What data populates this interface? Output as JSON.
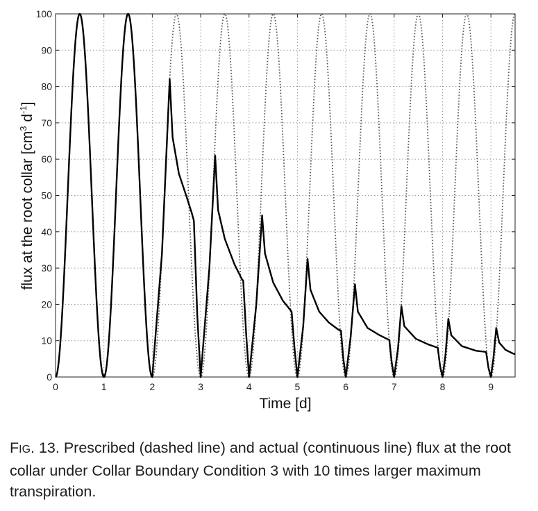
{
  "chart_data": {
    "type": "line",
    "xlabel": "Time [d]",
    "ylabel_main": "flux at the root collar [cm",
    "ylabel_sup1": "3",
    "ylabel_mid": " d",
    "ylabel_sup2": "-1",
    "ylabel_end": "]",
    "xlim": [
      0,
      9.5
    ],
    "ylim": [
      0,
      100
    ],
    "xticks": [
      0,
      1,
      2,
      3,
      4,
      5,
      6,
      7,
      8,
      9
    ],
    "yticks": [
      0,
      10,
      20,
      30,
      40,
      50,
      60,
      70,
      80,
      90,
      100
    ],
    "grid": true,
    "series": [
      {
        "style": "dashed",
        "color": "#555555",
        "formula": "50*(1-cos(2*pi*t))",
        "points": [
          [
            0,
            0
          ],
          [
            0.25,
            50
          ],
          [
            0.5,
            100
          ],
          [
            0.75,
            50
          ],
          [
            1,
            0
          ],
          [
            1.25,
            50
          ],
          [
            1.5,
            100
          ],
          [
            1.75,
            50
          ],
          [
            2,
            0
          ],
          [
            2.25,
            50
          ],
          [
            2.5,
            100
          ],
          [
            2.75,
            50
          ],
          [
            3,
            0
          ],
          [
            3.25,
            50
          ],
          [
            3.5,
            100
          ],
          [
            3.75,
            50
          ],
          [
            4,
            0
          ],
          [
            4.25,
            50
          ],
          [
            4.5,
            100
          ],
          [
            4.75,
            50
          ],
          [
            5,
            0
          ],
          [
            5.25,
            50
          ],
          [
            5.5,
            100
          ],
          [
            5.75,
            50
          ],
          [
            6,
            0
          ],
          [
            6.25,
            50
          ],
          [
            6.5,
            100
          ],
          [
            6.75,
            50
          ],
          [
            7,
            0
          ],
          [
            7.25,
            50
          ],
          [
            7.5,
            100
          ],
          [
            7.75,
            50
          ],
          [
            8,
            0
          ],
          [
            8.25,
            50
          ],
          [
            8.5,
            100
          ],
          [
            8.75,
            50
          ],
          [
            9,
            0
          ],
          [
            9.25,
            50
          ],
          [
            9.5,
            100
          ]
        ]
      },
      {
        "style": "solid",
        "color": "#000000",
        "points": [
          [
            0,
            0
          ],
          [
            0.25,
            50
          ],
          [
            0.5,
            100
          ],
          [
            0.75,
            50
          ],
          [
            1,
            0
          ],
          [
            1.25,
            50
          ],
          [
            1.5,
            100
          ],
          [
            1.75,
            50
          ],
          [
            2,
            0
          ],
          [
            2.2,
            34
          ],
          [
            2.36,
            82
          ],
          [
            2.42,
            66
          ],
          [
            2.55,
            56
          ],
          [
            2.7,
            50
          ],
          [
            2.82,
            45
          ],
          [
            2.86,
            43
          ],
          [
            2.93,
            17
          ],
          [
            3,
            0
          ],
          [
            3.18,
            30
          ],
          [
            3.3,
            61
          ],
          [
            3.36,
            46
          ],
          [
            3.5,
            38
          ],
          [
            3.7,
            31
          ],
          [
            3.85,
            27
          ],
          [
            3.88,
            26.5
          ],
          [
            3.94,
            12
          ],
          [
            4,
            0
          ],
          [
            4.15,
            20
          ],
          [
            4.27,
            44.5
          ],
          [
            4.33,
            34
          ],
          [
            4.5,
            26
          ],
          [
            4.7,
            21
          ],
          [
            4.85,
            18.5
          ],
          [
            4.88,
            18
          ],
          [
            4.94,
            8
          ],
          [
            5,
            0
          ],
          [
            5.12,
            14
          ],
          [
            5.21,
            32.5
          ],
          [
            5.27,
            24
          ],
          [
            5.45,
            18
          ],
          [
            5.65,
            15
          ],
          [
            5.85,
            13
          ],
          [
            5.9,
            12.8
          ],
          [
            5.95,
            5
          ],
          [
            6,
            0
          ],
          [
            6.1,
            11
          ],
          [
            6.19,
            25.5
          ],
          [
            6.25,
            18
          ],
          [
            6.45,
            13.5
          ],
          [
            6.7,
            11.5
          ],
          [
            6.85,
            10.5
          ],
          [
            6.9,
            10.2
          ],
          [
            6.95,
            4
          ],
          [
            7,
            0
          ],
          [
            7.08,
            8
          ],
          [
            7.15,
            19.5
          ],
          [
            7.21,
            14
          ],
          [
            7.45,
            10.5
          ],
          [
            7.7,
            9
          ],
          [
            7.85,
            8.3
          ],
          [
            7.9,
            8.1
          ],
          [
            7.95,
            3
          ],
          [
            8,
            0
          ],
          [
            8.06,
            6
          ],
          [
            8.12,
            16
          ],
          [
            8.18,
            11.5
          ],
          [
            8.4,
            8.5
          ],
          [
            8.7,
            7.2
          ],
          [
            8.85,
            7
          ],
          [
            8.9,
            6.9
          ],
          [
            8.95,
            2.5
          ],
          [
            9,
            0
          ],
          [
            9.05,
            5
          ],
          [
            9.11,
            13.5
          ],
          [
            9.17,
            9.5
          ],
          [
            9.3,
            7.5
          ],
          [
            9.45,
            6.5
          ],
          [
            9.5,
            6.3
          ]
        ]
      }
    ]
  },
  "caption": {
    "prefix": "F",
    "prefix_small": "IG",
    "text": ". 13. Prescribed (dashed line) and actual (continuous line) flux at the root collar under Collar Boundary Condition 3 with 10 times larger maximum transpiration."
  }
}
